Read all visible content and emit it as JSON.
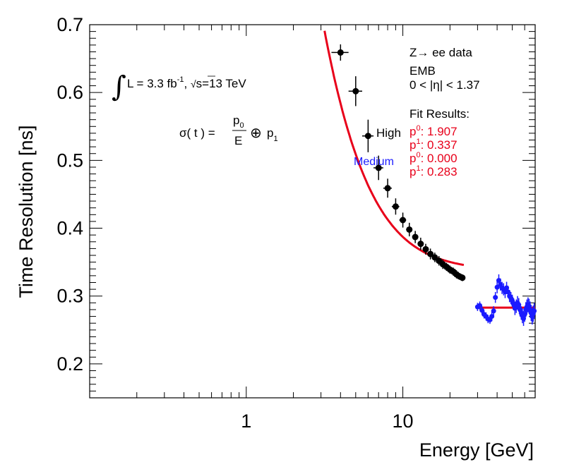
{
  "chart_data": {
    "type": "scatter",
    "xscale": "log",
    "xlim": [
      0.1,
      70
    ],
    "ylim": [
      0.15,
      0.7
    ],
    "xlabel": "Energy [GeV]",
    "ylabel": "Time Resolution [ns]",
    "x_ticks": [
      1,
      10
    ],
    "x_tick_labels": [
      "1",
      "10"
    ],
    "y_ticks": [
      0.2,
      0.3,
      0.4,
      0.5,
      0.6,
      0.7
    ],
    "y_tick_labels": [
      "0.2",
      "0.3",
      "0.4",
      "0.5",
      "0.6",
      "0.7"
    ],
    "series": [
      {
        "name": "High",
        "color": "#000000",
        "points": [
          {
            "x": 4.0,
            "y": 0.659,
            "xerr": 0.5,
            "yerr": 0.012
          },
          {
            "x": 5.0,
            "y": 0.602,
            "xerr": 0.5,
            "yerr": 0.022
          },
          {
            "x": 6.0,
            "y": 0.536,
            "xerr": 0.5,
            "yerr": 0.024
          },
          {
            "x": 7.0,
            "y": 0.489,
            "xerr": 0.5,
            "yerr": 0.018
          },
          {
            "x": 8.0,
            "y": 0.459,
            "xerr": 0.5,
            "yerr": 0.014
          },
          {
            "x": 9.0,
            "y": 0.432,
            "xerr": 0.5,
            "yerr": 0.012
          },
          {
            "x": 10.0,
            "y": 0.412,
            "xerr": 0.5,
            "yerr": 0.011
          },
          {
            "x": 11.0,
            "y": 0.398,
            "xerr": 0.5,
            "yerr": 0.01
          },
          {
            "x": 12.0,
            "y": 0.387,
            "xerr": 0.5,
            "yerr": 0.009
          },
          {
            "x": 13.0,
            "y": 0.377,
            "xerr": 0.5,
            "yerr": 0.009
          },
          {
            "x": 14.0,
            "y": 0.369,
            "xerr": 0.5,
            "yerr": 0.008
          },
          {
            "x": 15.0,
            "y": 0.362,
            "xerr": 0.5,
            "yerr": 0.008
          },
          {
            "x": 16.0,
            "y": 0.357,
            "xerr": 0.5,
            "yerr": 0.007
          },
          {
            "x": 17.0,
            "y": 0.352,
            "xerr": 0.5,
            "yerr": 0.007
          },
          {
            "x": 18.0,
            "y": 0.347,
            "xerr": 0.5,
            "yerr": 0.007
          },
          {
            "x": 19.0,
            "y": 0.343,
            "xerr": 0.5,
            "yerr": 0.006
          },
          {
            "x": 20.0,
            "y": 0.339,
            "xerr": 0.5,
            "yerr": 0.006
          },
          {
            "x": 21.0,
            "y": 0.336,
            "xerr": 0.5,
            "yerr": 0.006
          },
          {
            "x": 22.0,
            "y": 0.332,
            "xerr": 0.5,
            "yerr": 0.006
          },
          {
            "x": 23.0,
            "y": 0.329,
            "xerr": 0.5,
            "yerr": 0.005
          },
          {
            "x": 24.0,
            "y": 0.327,
            "xerr": 0.5,
            "yerr": 0.005
          }
        ]
      },
      {
        "name": "Medium",
        "color": "#1a1aff",
        "points": [
          {
            "x": 30,
            "y": 0.284,
            "yerr": 0.006
          },
          {
            "x": 31,
            "y": 0.286,
            "yerr": 0.006
          },
          {
            "x": 32,
            "y": 0.279,
            "yerr": 0.006
          },
          {
            "x": 33,
            "y": 0.273,
            "yerr": 0.006
          },
          {
            "x": 34,
            "y": 0.27,
            "yerr": 0.006
          },
          {
            "x": 35,
            "y": 0.266,
            "yerr": 0.006
          },
          {
            "x": 36,
            "y": 0.265,
            "yerr": 0.006
          },
          {
            "x": 37,
            "y": 0.27,
            "yerr": 0.007
          },
          {
            "x": 38,
            "y": 0.278,
            "yerr": 0.007
          },
          {
            "x": 39,
            "y": 0.298,
            "yerr": 0.008
          },
          {
            "x": 40,
            "y": 0.313,
            "yerr": 0.009
          },
          {
            "x": 41,
            "y": 0.323,
            "yerr": 0.009
          },
          {
            "x": 42,
            "y": 0.317,
            "yerr": 0.009
          },
          {
            "x": 43,
            "y": 0.312,
            "yerr": 0.009
          },
          {
            "x": 44,
            "y": 0.31,
            "yerr": 0.009
          },
          {
            "x": 45,
            "y": 0.306,
            "yerr": 0.009
          },
          {
            "x": 46,
            "y": 0.312,
            "yerr": 0.009
          },
          {
            "x": 47,
            "y": 0.306,
            "yerr": 0.009
          },
          {
            "x": 48,
            "y": 0.3,
            "yerr": 0.009
          },
          {
            "x": 49,
            "y": 0.297,
            "yerr": 0.009
          },
          {
            "x": 50,
            "y": 0.293,
            "yerr": 0.009
          },
          {
            "x": 51,
            "y": 0.288,
            "yerr": 0.009
          },
          {
            "x": 52,
            "y": 0.282,
            "yerr": 0.01
          },
          {
            "x": 53,
            "y": 0.285,
            "yerr": 0.01
          },
          {
            "x": 54,
            "y": 0.29,
            "yerr": 0.01
          },
          {
            "x": 55,
            "y": 0.287,
            "yerr": 0.01
          },
          {
            "x": 56,
            "y": 0.28,
            "yerr": 0.01
          },
          {
            "x": 57,
            "y": 0.275,
            "yerr": 0.01
          },
          {
            "x": 58,
            "y": 0.271,
            "yerr": 0.011
          },
          {
            "x": 59,
            "y": 0.267,
            "yerr": 0.011
          },
          {
            "x": 60,
            "y": 0.273,
            "yerr": 0.011
          },
          {
            "x": 61,
            "y": 0.28,
            "yerr": 0.011
          },
          {
            "x": 62,
            "y": 0.284,
            "yerr": 0.011
          },
          {
            "x": 63,
            "y": 0.287,
            "yerr": 0.011
          },
          {
            "x": 64,
            "y": 0.285,
            "yerr": 0.011
          },
          {
            "x": 65,
            "y": 0.28,
            "yerr": 0.012
          },
          {
            "x": 66,
            "y": 0.275,
            "yerr": 0.012
          },
          {
            "x": 67,
            "y": 0.27,
            "yerr": 0.012
          },
          {
            "x": 68,
            "y": 0.274,
            "yerr": 0.012
          },
          {
            "x": 69,
            "y": 0.278,
            "yerr": 0.012
          }
        ]
      }
    ],
    "fits": [
      {
        "name": "High fit",
        "color": "#e8001a",
        "x_range": [
          3.0,
          24.5
        ],
        "p0": 1.907,
        "p1": 0.337
      },
      {
        "name": "Medium fit",
        "color": "#e8001a",
        "x_range": [
          30,
          70
        ],
        "p0": 0.0,
        "p1": 0.283
      }
    ]
  },
  "annotations": {
    "lumi_prefix": "L = 3.3 fb",
    "lumi_exp": "-1",
    "lumi_sep": ", ",
    "sqrt_sign": "√",
    "energy": "s=13 TeV",
    "formula_lhs": "σ( t ) =",
    "formula_num": "p",
    "formula_num_sub": "0",
    "formula_den": "E",
    "formula_op": "⊕",
    "formula_p1": "p",
    "formula_p1_sub": "1",
    "process": "Z→ ee data",
    "region": "EMB",
    "eta_range": "0 < |η| < 1.37",
    "fit_title": "Fit Results:",
    "high_label": "High",
    "medium_label": "Medium",
    "fit_results": [
      {
        "label": "p",
        "sub": "0",
        "value": ": 1.907"
      },
      {
        "label": "p",
        "sub": "1",
        "value": ": 0.337"
      },
      {
        "label": "p",
        "sub": "0",
        "value": ": 0.000"
      },
      {
        "label": "p",
        "sub": "1",
        "value": ": 0.283"
      }
    ]
  }
}
